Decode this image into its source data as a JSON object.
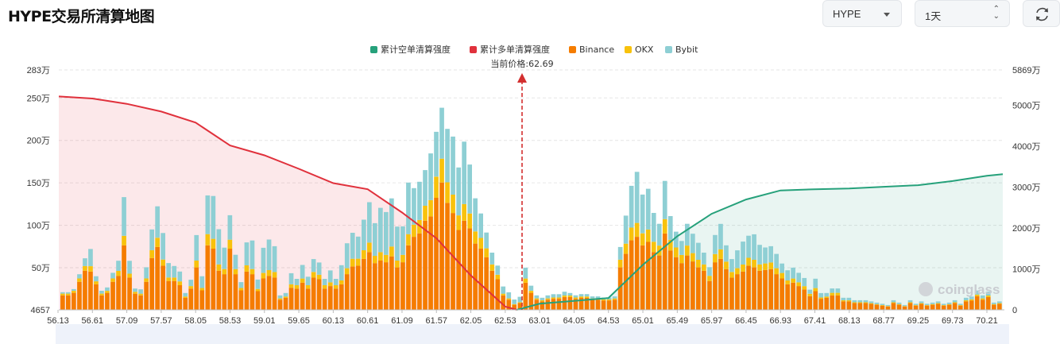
{
  "header": {
    "title": "HYPE交易所清算地图",
    "symbol_value": "HYPE",
    "interval_value": "1天",
    "refresh_icon": "refresh-icon"
  },
  "legend": {
    "short_cumulative": "累计空单清算强度",
    "long_cumulative": "累计多单清算强度",
    "binance": "Binance",
    "okx": "OKX",
    "bybit": "Bybit"
  },
  "current_price_label": "当前价格:62.69",
  "watermark": "coinglass",
  "colors": {
    "short_line": "#26a17b",
    "long_line": "#e0313c",
    "binance": "#f57c00",
    "okx": "#f8c20c",
    "bybit": "#8ecfd4",
    "price_marker": "#d32f2f"
  },
  "chart_data": {
    "type": "bar",
    "title": "HYPE交易所清算地图",
    "x_tick_labels": [
      "56.13",
      "56.61",
      "57.09",
      "57.57",
      "58.05",
      "58.53",
      "59.01",
      "59.65",
      "60.13",
      "60.61",
      "61.09",
      "61.57",
      "62.05",
      "62.53",
      "63.01",
      "64.05",
      "64.53",
      "65.01",
      "65.49",
      "65.97",
      "66.45",
      "66.93",
      "67.41",
      "68.13",
      "68.77",
      "69.25",
      "69.73",
      "70.21"
    ],
    "left_axis_labels": [
      "4657",
      "50万",
      "100万",
      "150万",
      "200万",
      "250万",
      "283万"
    ],
    "right_axis_labels": [
      "0",
      "1000万",
      "2000万",
      "3000万",
      "4000万",
      "5000万",
      "5869万"
    ],
    "left_axis_range": [
      4657,
      2830000
    ],
    "right_axis_range": [
      0,
      58690000
    ],
    "current_price": 62.69,
    "bar_series": [
      {
        "name": "Binance",
        "total_values": [
          170000,
          170000,
          200000,
          330000,
          460000,
          450000,
          300000,
          170000,
          200000,
          330000,
          400000,
          760000,
          380000,
          190000,
          170000,
          330000,
          610000,
          740000,
          520000,
          340000,
          340000,
          290000,
          140000,
          250000,
          500000,
          230000,
          760000,
          720000,
          460000,
          420000,
          720000,
          420000,
          230000,
          450000,
          420000,
          220000,
          370000,
          400000,
          380000,
          120000,
          140000,
          260000,
          250000,
          320000,
          250000,
          380000,
          360000,
          250000,
          280000,
          250000,
          300000,
          420000,
          510000,
          520000,
          600000,
          680000,
          550000,
          580000,
          560000,
          630000,
          500000,
          560000,
          760000,
          860000,
          900000,
          1050000,
          1100000,
          1320000,
          1500000,
          1260000,
          1140000,
          940000,
          1050000,
          960000,
          780000,
          720000,
          620000,
          460000,
          360000,
          170000,
          120000,
          60000,
          80000,
          320000,
          200000,
          120000,
          100000,
          120000,
          130000,
          130000,
          150000,
          150000,
          130000,
          140000,
          140000,
          120000,
          120000,
          110000,
          110000,
          120000,
          500000,
          660000,
          820000,
          860000,
          760000,
          800000,
          680000,
          640000,
          900000,
          700000,
          620000,
          550000,
          640000,
          570000,
          500000,
          460000,
          340000,
          560000,
          600000,
          480000,
          380000,
          420000,
          450000,
          520000,
          500000,
          460000,
          470000,
          480000,
          420000,
          370000,
          300000,
          320000,
          280000,
          240000,
          160000,
          220000,
          130000,
          140000,
          170000,
          170000,
          100000,
          100000,
          80000,
          80000,
          80000,
          70000,
          60000,
          50000,
          40000,
          80000,
          60000,
          40000,
          80000,
          50000,
          70000,
          50000,
          60000,
          70000,
          50000,
          60000,
          80000,
          50000,
          100000,
          110000,
          160000,
          120000,
          150000,
          60000,
          70000
        ]
      },
      {
        "name": "OKX",
        "total_values": [
          0,
          0,
          0,
          0,
          0,
          10000,
          0,
          0,
          0,
          0,
          10000,
          20000,
          0,
          0,
          0,
          0,
          20000,
          20000,
          10000,
          0,
          0,
          10000,
          0,
          0,
          20000,
          0,
          40000,
          30000,
          20000,
          10000,
          20000,
          10000,
          0,
          20000,
          10000,
          0,
          20000,
          20000,
          20000,
          0,
          0,
          10000,
          10000,
          10000,
          10000,
          20000,
          10000,
          10000,
          10000,
          10000,
          10000,
          20000,
          30000,
          20000,
          30000,
          30000,
          20000,
          30000,
          20000,
          40000,
          20000,
          20000,
          40000,
          40000,
          50000,
          50000,
          60000,
          90000,
          100000,
          90000,
          80000,
          60000,
          70000,
          60000,
          50000,
          40000,
          30000,
          20000,
          10000,
          0,
          0,
          0,
          0,
          10000,
          0,
          0,
          0,
          0,
          0,
          0,
          0,
          0,
          0,
          0,
          0,
          0,
          0,
          0,
          0,
          0,
          30000,
          40000,
          50000,
          60000,
          50000,
          50000,
          40000,
          40000,
          60000,
          40000,
          40000,
          30000,
          40000,
          30000,
          30000,
          20000,
          20000,
          30000,
          40000,
          30000,
          20000,
          20000,
          30000,
          30000,
          30000,
          20000,
          20000,
          20000,
          20000,
          20000,
          10000,
          10000,
          10000,
          10000,
          10000,
          10000,
          0,
          0,
          10000,
          10000,
          0,
          0,
          0,
          0,
          0,
          0,
          0,
          0,
          0,
          0,
          0,
          0,
          0,
          0,
          0,
          0,
          0,
          0,
          0,
          0,
          0,
          0,
          0,
          0,
          0,
          0,
          0,
          0,
          0
        ]
      }
    ],
    "line_series": [
      {
        "name": "累计多单清算强度",
        "x": [
          56.13,
          56.61,
          57.09,
          57.57,
          58.05,
          58.53,
          59.01,
          59.65,
          60.13,
          60.61,
          61.09,
          61.57,
          62.05,
          62.53,
          62.69
        ],
        "y": [
          52200000,
          51700000,
          50400000,
          48500000,
          45800000,
          40200000,
          37800000,
          34500000,
          31000000,
          29500000,
          23800000,
          17500000,
          8400000,
          800000,
          0
        ]
      },
      {
        "name": "累计空单清算强度",
        "x": [
          62.69,
          63.01,
          64.05,
          64.53,
          65.01,
          65.49,
          65.97,
          66.45,
          66.93,
          67.41,
          68.13,
          68.77,
          69.25,
          69.73,
          70.21
        ],
        "y": [
          0,
          1500000,
          2200000,
          2900000,
          11000000,
          18000000,
          23500000,
          27000000,
          29200000,
          29500000,
          29700000,
          30100000,
          30500000,
          31500000,
          32800000
        ]
      }
    ],
    "legend_position": "top-center",
    "grid": "horizontal dashed"
  }
}
